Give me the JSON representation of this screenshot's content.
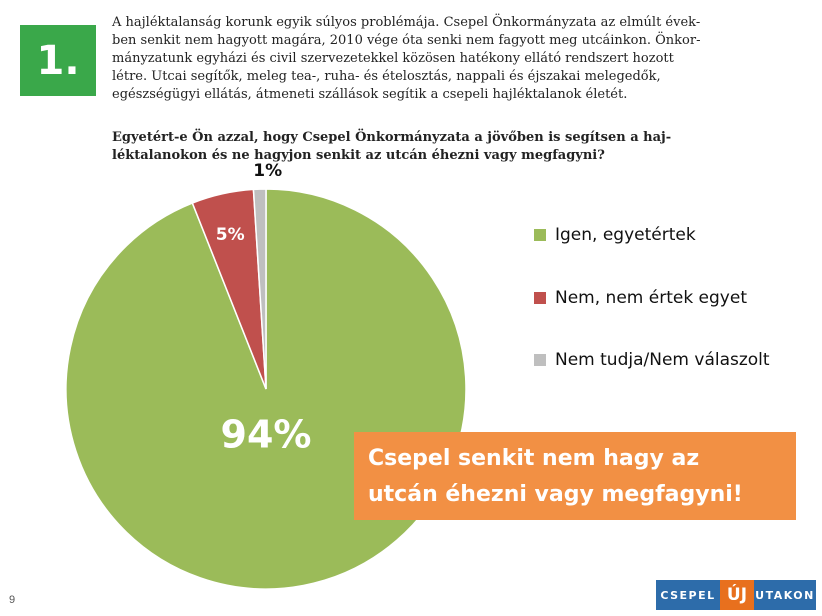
{
  "slide": {
    "number": "1.",
    "intro_lines": [
      "A hajléktalanság korunk egyik súlyos problémája. Csepel Önkormányzata az elmúlt évek-",
      "ben senkit nem hagyott magára, 2010 vége óta senki nem fagyott meg utcáinkon. Önkor-",
      "mányzatunk egyházi és civil szervezetekkel közösen hatékony ellátó rendszert hozott",
      "létre. Utcai segítők, meleg tea-, ruha- és ételosztás, nappali és éjszakai melegedők,",
      "egészségügyi ellátás, átmeneti szállások segítik a csepeli hajléktalanok életét."
    ],
    "question_lines": [
      "Egyetért-e Ön azzal, hogy Csepel Önkormányzata a jövőben is segítsen a haj-",
      "léktalanokon és ne hagyjon senkit az utcán éhezni vagy megfagyni?"
    ],
    "callout_lines": [
      "Csepel senkit nem hagy az",
      "utcán éhezni vagy megfagyni!"
    ],
    "page_number": "9",
    "brand": {
      "left": "CSEPEL",
      "middle": "ÚJ",
      "right": "UTAKON"
    }
  },
  "chart_data": {
    "type": "pie",
    "slices": [
      {
        "label": "Igen, egyetértek",
        "value": 94,
        "display": "94%",
        "color": "#9bbb59"
      },
      {
        "label": "Nem, nem értek egyet",
        "value": 5,
        "display": "5%",
        "color": "#c0504d"
      },
      {
        "label": "Nem tudja/Nem válaszolt",
        "value": 1,
        "display": "1%",
        "color": "#bfbfbf"
      }
    ],
    "legend_position": "right"
  }
}
